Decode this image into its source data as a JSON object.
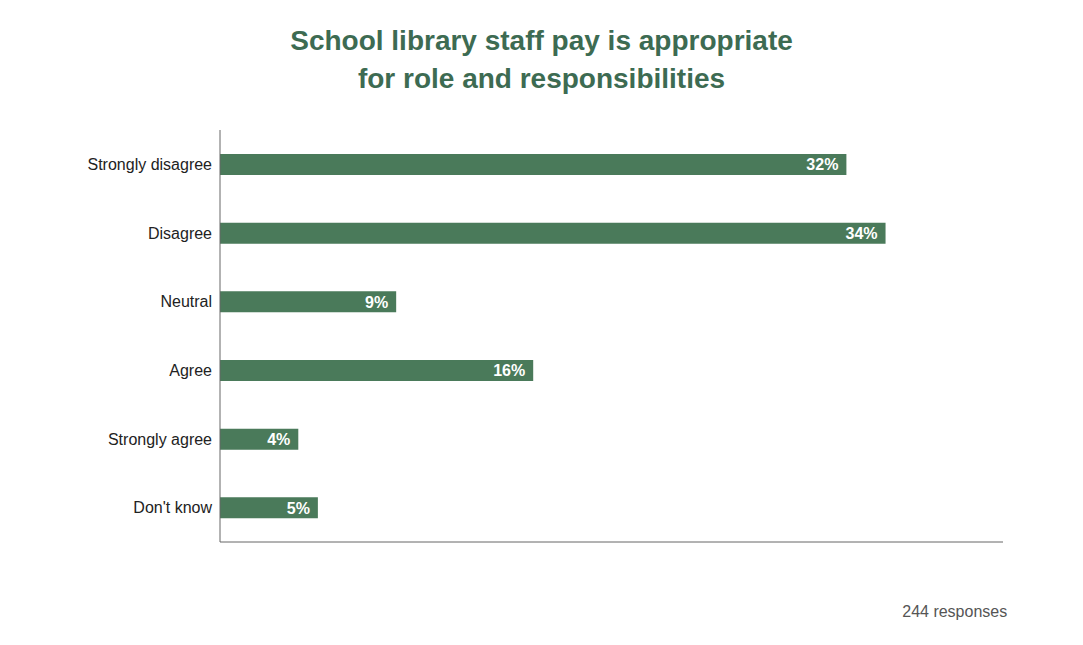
{
  "chart_data": {
    "type": "bar",
    "orientation": "horizontal",
    "title": "School library staff pay is appropriate",
    "subtitle": "for role and responsibilities",
    "categories": [
      "Strongly disagree",
      "Disagree",
      "Neutral",
      "Agree",
      "Strongly agree",
      "Don't know"
    ],
    "values": [
      32,
      34,
      9,
      16,
      4,
      5
    ],
    "value_labels": [
      "32%",
      "34%",
      "9%",
      "16%",
      "4%",
      "5%"
    ],
    "data_labels": true,
    "color": "#4a7a5a",
    "xlim": [
      0,
      40
    ],
    "tick_labels": "y",
    "grid": false,
    "annotations": [
      "244 responses"
    ]
  }
}
